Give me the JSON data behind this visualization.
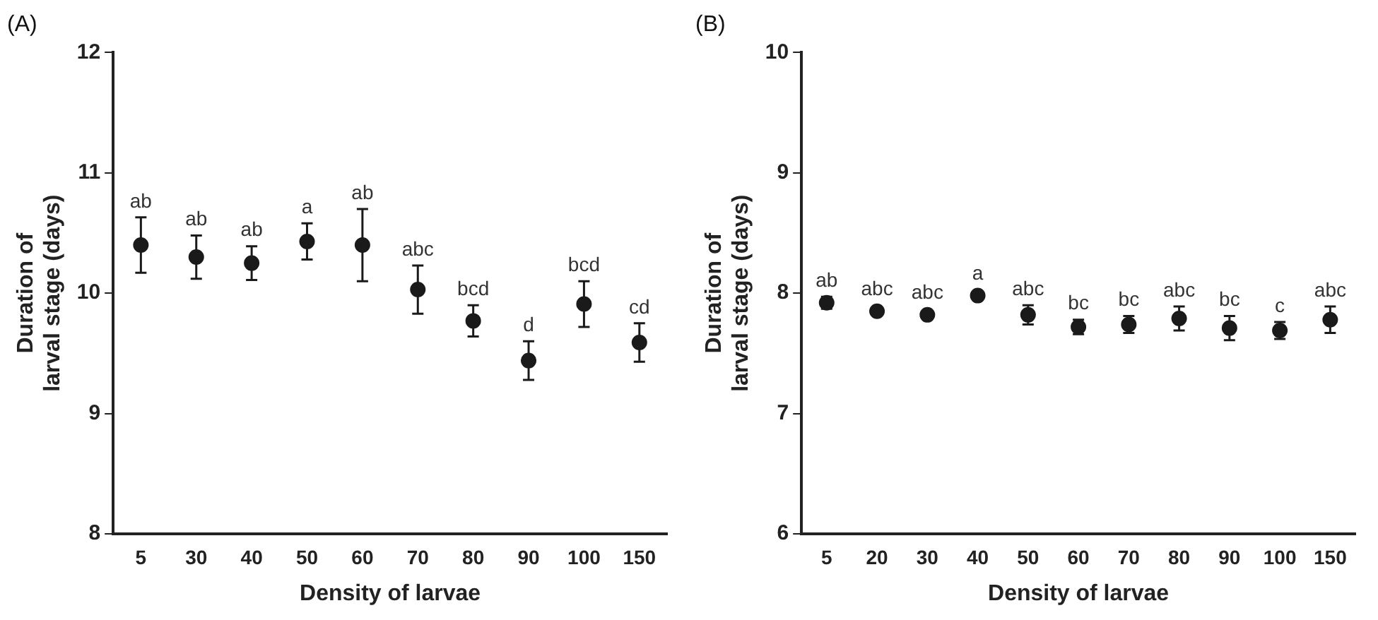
{
  "chart_data": [
    {
      "type": "scatter",
      "title": "(A)",
      "xlabel": "Density of larvae",
      "ylabel": "Duration of\nlarval stage (days)",
      "categories": [
        "5",
        "30",
        "40",
        "50",
        "60",
        "70",
        "80",
        "90",
        "100",
        "150"
      ],
      "values": [
        10.4,
        10.3,
        10.25,
        10.43,
        10.4,
        10.03,
        9.77,
        9.44,
        9.91,
        9.59
      ],
      "errors": [
        0.23,
        0.18,
        0.14,
        0.15,
        0.3,
        0.2,
        0.13,
        0.16,
        0.19,
        0.16
      ],
      "color": "#1a1a1a",
      "marker": "circle",
      "ylim": [
        8,
        12
      ],
      "yticks": [
        8,
        9,
        10,
        11,
        12
      ],
      "grid": false,
      "legend": false,
      "annotations": [
        {
          "text": "ab",
          "x": "5",
          "y": 10.63
        },
        {
          "text": "ab",
          "x": "30",
          "y": 10.48
        },
        {
          "text": "ab",
          "x": "40",
          "y": 10.39
        },
        {
          "text": "a",
          "x": "50",
          "y": 10.58
        },
        {
          "text": "ab",
          "x": "60",
          "y": 10.7
        },
        {
          "text": "abc",
          "x": "70",
          "y": 10.23
        },
        {
          "text": "bcd",
          "x": "80",
          "y": 9.9
        },
        {
          "text": "d",
          "x": "90",
          "y": 9.6
        },
        {
          "text": "bcd",
          "x": "100",
          "y": 10.1
        },
        {
          "text": "cd",
          "x": "150",
          "y": 9.75
        }
      ]
    },
    {
      "type": "scatter",
      "title": "(B)",
      "xlabel": "Density of larvae",
      "ylabel": "Duration of\nlarval stage (days)",
      "categories": [
        "5",
        "20",
        "30",
        "40",
        "50",
        "60",
        "70",
        "80",
        "90",
        "100",
        "150"
      ],
      "values": [
        7.92,
        7.85,
        7.82,
        7.98,
        7.82,
        7.72,
        7.74,
        7.79,
        7.71,
        7.69,
        7.78
      ],
      "errors": [
        0.05,
        null,
        null,
        null,
        0.08,
        0.06,
        0.07,
        0.1,
        0.1,
        0.07,
        0.11
      ],
      "color": "#1a1a1a",
      "marker": "circle",
      "ylim": [
        6,
        10
      ],
      "yticks": [
        6,
        7,
        8,
        9,
        10
      ],
      "grid": false,
      "legend": false,
      "annotations": [
        {
          "text": "ab",
          "x": "5",
          "y": 7.97
        },
        {
          "text": "abc",
          "x": "20",
          "y": 7.9
        },
        {
          "text": "abc",
          "x": "30",
          "y": 7.87
        },
        {
          "text": "a",
          "x": "40",
          "y": 8.03
        },
        {
          "text": "abc",
          "x": "50",
          "y": 7.9
        },
        {
          "text": "bc",
          "x": "60",
          "y": 7.78
        },
        {
          "text": "bc",
          "x": "70",
          "y": 7.81
        },
        {
          "text": "abc",
          "x": "80",
          "y": 7.89
        },
        {
          "text": "bc",
          "x": "90",
          "y": 7.81
        },
        {
          "text": "c",
          "x": "100",
          "y": 7.76
        },
        {
          "text": "abc",
          "x": "150",
          "y": 7.89
        }
      ]
    }
  ]
}
